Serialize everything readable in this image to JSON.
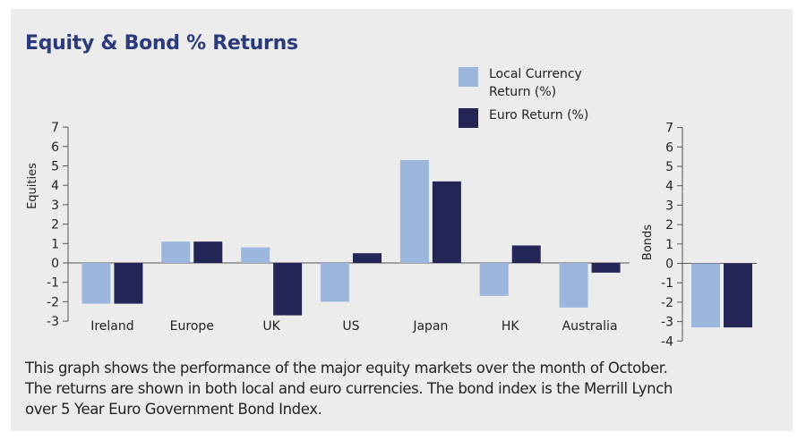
{
  "title": "Equity & Bond % Returns",
  "caption": [
    "This graph shows the performance of the major equity markets over the month of October.",
    "The returns are shown in both local and euro currencies. The bond index is the Merrill Lynch",
    "over 5 Year Euro Government Bond Index."
  ],
  "colors": {
    "local": "#9db6de",
    "euro": "#232656",
    "axis": "#555555",
    "title": "#2b3a7c"
  },
  "chart_data": [
    {
      "type": "bar",
      "ylabel": "Equities",
      "categories": [
        "Ireland",
        "Europe",
        "UK",
        "US",
        "Japan",
        "HK",
        "Australia"
      ],
      "series": [
        {
          "name": "Local Currency Return (%)",
          "name_lines": [
            "Local Currency",
            "Return (%)"
          ],
          "values": [
            -2.1,
            1.1,
            0.8,
            -2.0,
            5.3,
            -1.7,
            -2.3
          ]
        },
        {
          "name": "Euro Return (%)",
          "name_lines": [
            "Euro Return (%)"
          ],
          "values": [
            -2.1,
            1.1,
            -2.7,
            0.5,
            4.2,
            0.9,
            -0.5
          ]
        }
      ],
      "ylim": [
        -3,
        7
      ],
      "yticks": [
        -3,
        -2,
        -1,
        0,
        1,
        2,
        3,
        4,
        5,
        6,
        7
      ],
      "legend": "top-right",
      "grid": false
    },
    {
      "type": "bar",
      "ylabel": "Bonds",
      "categories": [
        ""
      ],
      "series": [
        {
          "name": "Local Currency Return (%)",
          "values": [
            -3.3
          ]
        },
        {
          "name": "Euro Return (%)",
          "values": [
            -3.3
          ]
        }
      ],
      "ylim": [
        -4,
        7
      ],
      "yticks": [
        -4,
        -3,
        -2,
        -1,
        0,
        1,
        2,
        3,
        4,
        5,
        6,
        7
      ],
      "grid": false
    }
  ]
}
